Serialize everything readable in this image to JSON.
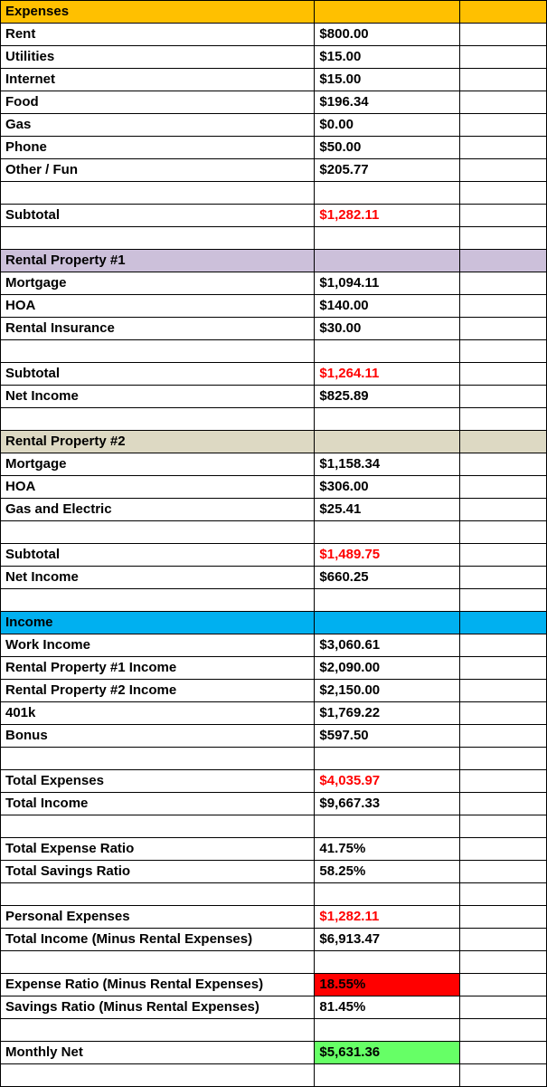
{
  "colors": {
    "gold": "#FFC000",
    "lavender": "#CCC0DA",
    "tan": "#DDD9C3",
    "blue": "#00B0F0",
    "red_text": "#FF0000",
    "red_fill": "#FF0000",
    "green_fill": "#66FF66",
    "grid_border": "#000000"
  },
  "rows": [
    {
      "label": "Expenses",
      "value": "",
      "bg": "gold"
    },
    {
      "label": "Rent",
      "value": "$800.00"
    },
    {
      "label": "Utilities",
      "value": "$15.00"
    },
    {
      "label": "Internet",
      "value": "$15.00"
    },
    {
      "label": "Food",
      "value": "$196.34"
    },
    {
      "label": "Gas",
      "value": "$0.00"
    },
    {
      "label": "Phone",
      "value": "$50.00"
    },
    {
      "label": "Other / Fun",
      "value": "$205.77"
    },
    {
      "label": "",
      "value": ""
    },
    {
      "label": "Subtotal",
      "value": "$1,282.11",
      "valueColor": "red_text"
    },
    {
      "label": "",
      "value": ""
    },
    {
      "label": "Rental Property #1",
      "value": "",
      "bg": "lavender"
    },
    {
      "label": "Mortgage",
      "value": "$1,094.11"
    },
    {
      "label": "HOA",
      "value": "$140.00"
    },
    {
      "label": "Rental Insurance",
      "value": "$30.00"
    },
    {
      "label": "",
      "value": ""
    },
    {
      "label": "Subtotal",
      "value": "$1,264.11",
      "valueColor": "red_text"
    },
    {
      "label": "Net Income",
      "value": "$825.89"
    },
    {
      "label": "",
      "value": ""
    },
    {
      "label": "Rental Property #2",
      "value": "",
      "bg": "tan"
    },
    {
      "label": "Mortgage",
      "value": "$1,158.34"
    },
    {
      "label": "HOA",
      "value": "$306.00"
    },
    {
      "label": "Gas and Electric",
      "value": "$25.41"
    },
    {
      "label": "",
      "value": ""
    },
    {
      "label": "Subtotal",
      "value": "$1,489.75",
      "valueColor": "red_text"
    },
    {
      "label": "Net Income",
      "value": "$660.25"
    },
    {
      "label": "",
      "value": ""
    },
    {
      "label": "Income",
      "value": "",
      "bg": "blue"
    },
    {
      "label": "Work Income",
      "value": "$3,060.61"
    },
    {
      "label": "Rental Property #1 Income",
      "value": "$2,090.00"
    },
    {
      "label": "Rental Property #2 Income",
      "value": "$2,150.00"
    },
    {
      "label": "401k",
      "value": "$1,769.22"
    },
    {
      "label": "Bonus",
      "value": "$597.50"
    },
    {
      "label": "",
      "value": ""
    },
    {
      "label": "Total Expenses",
      "value": "$4,035.97",
      "valueColor": "red_text"
    },
    {
      "label": "Total Income",
      "value": "$9,667.33"
    },
    {
      "label": "",
      "value": ""
    },
    {
      "label": "Total Expense Ratio",
      "value": "41.75%"
    },
    {
      "label": "Total Savings Ratio",
      "value": "58.25%"
    },
    {
      "label": "",
      "value": ""
    },
    {
      "label": "Personal Expenses",
      "value": "$1,282.11",
      "valueColor": "red_text"
    },
    {
      "label": "Total Income (Minus Rental Expenses)",
      "value": "$6,913.47"
    },
    {
      "label": "",
      "value": ""
    },
    {
      "label": "Expense Ratio (Minus Rental Expenses)",
      "value": "18.55%",
      "valueBg": "red_fill"
    },
    {
      "label": "Savings Ratio (Minus Rental Expenses)",
      "value": "81.45%"
    },
    {
      "label": "",
      "value": ""
    },
    {
      "label": "Monthly Net",
      "value": "$5,631.36",
      "valueBg": "green_fill"
    },
    {
      "label": "",
      "value": ""
    }
  ]
}
